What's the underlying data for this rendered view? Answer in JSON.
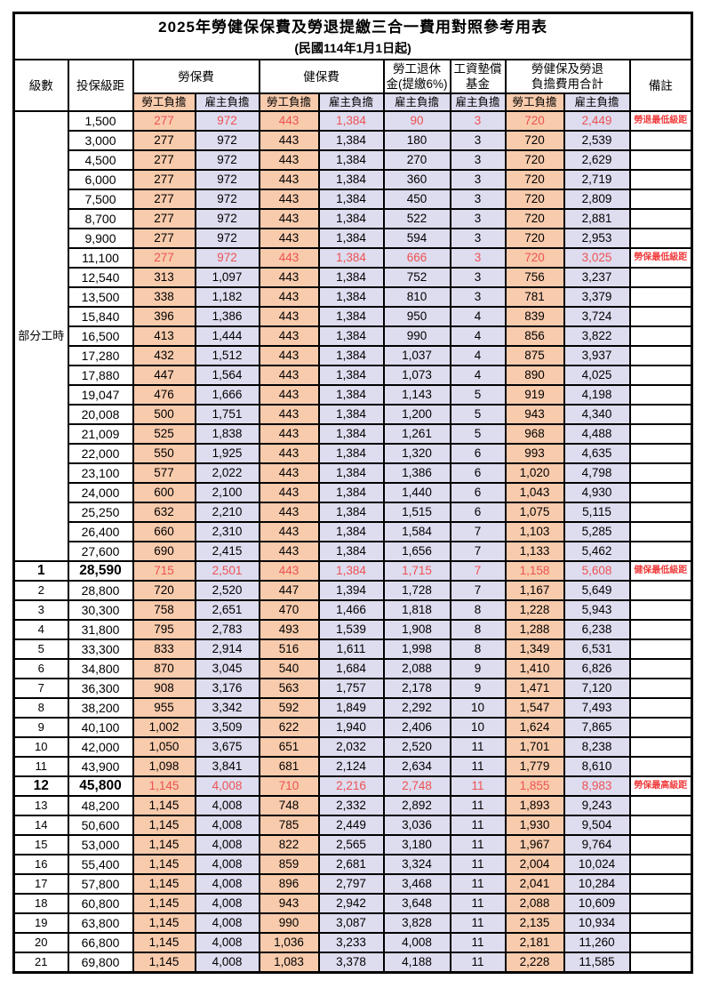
{
  "title": "2025年勞健保保費及勞退提繳三合一費用對照參考用表",
  "subtitle": "(民國114年1月1日起)",
  "header": {
    "level": "級數",
    "bracket": "投保級距",
    "labor_insurance": "勞保費",
    "health_insurance": "健保費",
    "pension_line1": "勞工退休",
    "pension_line2": "金(提繳6%)",
    "wage_fund_line1": "工資墊償",
    "wage_fund_line2": "基金",
    "total_line1": "勞健保及勞退",
    "total_line2": "負擔費用合計",
    "remark": "備註",
    "employee_share": "勞工負擔",
    "employer_share": "雇主負擔"
  },
  "colors": {
    "employee_bg": "#F8CBAD",
    "employer_bg": "#DEDCEF",
    "highlight_text": "#EC5252",
    "remark_text": "#F03C3C",
    "border": "#000000"
  },
  "group": {
    "label": "部分工時",
    "span": 23
  },
  "rows": [
    {
      "level": "",
      "bracket": "1,500",
      "values": [
        "277",
        "972",
        "443",
        "1,384",
        "90",
        "3",
        "720",
        "2,449"
      ],
      "remark": "勞退最低級距",
      "red": true,
      "bold": false
    },
    {
      "level": "",
      "bracket": "3,000",
      "values": [
        "277",
        "972",
        "443",
        "1,384",
        "180",
        "3",
        "720",
        "2,539"
      ],
      "remark": "",
      "red": false,
      "bold": false
    },
    {
      "level": "",
      "bracket": "4,500",
      "values": [
        "277",
        "972",
        "443",
        "1,384",
        "270",
        "3",
        "720",
        "2,629"
      ],
      "remark": "",
      "red": false,
      "bold": false
    },
    {
      "level": "",
      "bracket": "6,000",
      "values": [
        "277",
        "972",
        "443",
        "1,384",
        "360",
        "3",
        "720",
        "2,719"
      ],
      "remark": "",
      "red": false,
      "bold": false
    },
    {
      "level": "",
      "bracket": "7,500",
      "values": [
        "277",
        "972",
        "443",
        "1,384",
        "450",
        "3",
        "720",
        "2,809"
      ],
      "remark": "",
      "red": false,
      "bold": false
    },
    {
      "level": "",
      "bracket": "8,700",
      "values": [
        "277",
        "972",
        "443",
        "1,384",
        "522",
        "3",
        "720",
        "2,881"
      ],
      "remark": "",
      "red": false,
      "bold": false
    },
    {
      "level": "",
      "bracket": "9,900",
      "values": [
        "277",
        "972",
        "443",
        "1,384",
        "594",
        "3",
        "720",
        "2,953"
      ],
      "remark": "",
      "red": false,
      "bold": false
    },
    {
      "level": "",
      "bracket": "11,100",
      "values": [
        "277",
        "972",
        "443",
        "1,384",
        "666",
        "3",
        "720",
        "3,025"
      ],
      "remark": "勞保最低級距",
      "red": true,
      "bold": false
    },
    {
      "level": "",
      "bracket": "12,540",
      "values": [
        "313",
        "1,097",
        "443",
        "1,384",
        "752",
        "3",
        "756",
        "3,237"
      ],
      "remark": "",
      "red": false,
      "bold": false
    },
    {
      "level": "",
      "bracket": "13,500",
      "values": [
        "338",
        "1,182",
        "443",
        "1,384",
        "810",
        "3",
        "781",
        "3,379"
      ],
      "remark": "",
      "red": false,
      "bold": false
    },
    {
      "level": "",
      "bracket": "15,840",
      "values": [
        "396",
        "1,386",
        "443",
        "1,384",
        "950",
        "4",
        "839",
        "3,724"
      ],
      "remark": "",
      "red": false,
      "bold": false
    },
    {
      "level": "",
      "bracket": "16,500",
      "values": [
        "413",
        "1,444",
        "443",
        "1,384",
        "990",
        "4",
        "856",
        "3,822"
      ],
      "remark": "",
      "red": false,
      "bold": false
    },
    {
      "level": "",
      "bracket": "17,280",
      "values": [
        "432",
        "1,512",
        "443",
        "1,384",
        "1,037",
        "4",
        "875",
        "3,937"
      ],
      "remark": "",
      "red": false,
      "bold": false
    },
    {
      "level": "",
      "bracket": "17,880",
      "values": [
        "447",
        "1,564",
        "443",
        "1,384",
        "1,073",
        "4",
        "890",
        "4,025"
      ],
      "remark": "",
      "red": false,
      "bold": false
    },
    {
      "level": "",
      "bracket": "19,047",
      "values": [
        "476",
        "1,666",
        "443",
        "1,384",
        "1,143",
        "5",
        "919",
        "4,198"
      ],
      "remark": "",
      "red": false,
      "bold": false
    },
    {
      "level": "",
      "bracket": "20,008",
      "values": [
        "500",
        "1,751",
        "443",
        "1,384",
        "1,200",
        "5",
        "943",
        "4,340"
      ],
      "remark": "",
      "red": false,
      "bold": false
    },
    {
      "level": "",
      "bracket": "21,009",
      "values": [
        "525",
        "1,838",
        "443",
        "1,384",
        "1,261",
        "5",
        "968",
        "4,488"
      ],
      "remark": "",
      "red": false,
      "bold": false
    },
    {
      "level": "",
      "bracket": "22,000",
      "values": [
        "550",
        "1,925",
        "443",
        "1,384",
        "1,320",
        "6",
        "993",
        "4,635"
      ],
      "remark": "",
      "red": false,
      "bold": false
    },
    {
      "level": "",
      "bracket": "23,100",
      "values": [
        "577",
        "2,022",
        "443",
        "1,384",
        "1,386",
        "6",
        "1,020",
        "4,798"
      ],
      "remark": "",
      "red": false,
      "bold": false
    },
    {
      "level": "",
      "bracket": "24,000",
      "values": [
        "600",
        "2,100",
        "443",
        "1,384",
        "1,440",
        "6",
        "1,043",
        "4,930"
      ],
      "remark": "",
      "red": false,
      "bold": false
    },
    {
      "level": "",
      "bracket": "25,250",
      "values": [
        "632",
        "2,210",
        "443",
        "1,384",
        "1,515",
        "6",
        "1,075",
        "5,115"
      ],
      "remark": "",
      "red": false,
      "bold": false
    },
    {
      "level": "",
      "bracket": "26,400",
      "values": [
        "660",
        "2,310",
        "443",
        "1,384",
        "1,584",
        "7",
        "1,103",
        "5,285"
      ],
      "remark": "",
      "red": false,
      "bold": false
    },
    {
      "level": "",
      "bracket": "27,600",
      "values": [
        "690",
        "2,415",
        "443",
        "1,384",
        "1,656",
        "7",
        "1,133",
        "5,462"
      ],
      "remark": "",
      "red": false,
      "bold": false
    },
    {
      "level": "1",
      "bracket": "28,590",
      "values": [
        "715",
        "2,501",
        "443",
        "1,384",
        "1,715",
        "7",
        "1,158",
        "5,608"
      ],
      "remark": "健保最低級距",
      "red": true,
      "bold": true
    },
    {
      "level": "2",
      "bracket": "28,800",
      "values": [
        "720",
        "2,520",
        "447",
        "1,394",
        "1,728",
        "7",
        "1,167",
        "5,649"
      ],
      "remark": "",
      "red": false,
      "bold": false
    },
    {
      "level": "3",
      "bracket": "30,300",
      "values": [
        "758",
        "2,651",
        "470",
        "1,466",
        "1,818",
        "8",
        "1,228",
        "5,943"
      ],
      "remark": "",
      "red": false,
      "bold": false
    },
    {
      "level": "4",
      "bracket": "31,800",
      "values": [
        "795",
        "2,783",
        "493",
        "1,539",
        "1,908",
        "8",
        "1,288",
        "6,238"
      ],
      "remark": "",
      "red": false,
      "bold": false
    },
    {
      "level": "5",
      "bracket": "33,300",
      "values": [
        "833",
        "2,914",
        "516",
        "1,611",
        "1,998",
        "8",
        "1,349",
        "6,531"
      ],
      "remark": "",
      "red": false,
      "bold": false
    },
    {
      "level": "6",
      "bracket": "34,800",
      "values": [
        "870",
        "3,045",
        "540",
        "1,684",
        "2,088",
        "9",
        "1,410",
        "6,826"
      ],
      "remark": "",
      "red": false,
      "bold": false
    },
    {
      "level": "7",
      "bracket": "36,300",
      "values": [
        "908",
        "3,176",
        "563",
        "1,757",
        "2,178",
        "9",
        "1,471",
        "7,120"
      ],
      "remark": "",
      "red": false,
      "bold": false
    },
    {
      "level": "8",
      "bracket": "38,200",
      "values": [
        "955",
        "3,342",
        "592",
        "1,849",
        "2,292",
        "10",
        "1,547",
        "7,493"
      ],
      "remark": "",
      "red": false,
      "bold": false
    },
    {
      "level": "9",
      "bracket": "40,100",
      "values": [
        "1,002",
        "3,509",
        "622",
        "1,940",
        "2,406",
        "10",
        "1,624",
        "7,865"
      ],
      "remark": "",
      "red": false,
      "bold": false
    },
    {
      "level": "10",
      "bracket": "42,000",
      "values": [
        "1,050",
        "3,675",
        "651",
        "2,032",
        "2,520",
        "11",
        "1,701",
        "8,238"
      ],
      "remark": "",
      "red": false,
      "bold": false
    },
    {
      "level": "11",
      "bracket": "43,900",
      "values": [
        "1,098",
        "3,841",
        "681",
        "2,124",
        "2,634",
        "11",
        "1,779",
        "8,610"
      ],
      "remark": "",
      "red": false,
      "bold": false
    },
    {
      "level": "12",
      "bracket": "45,800",
      "values": [
        "1,145",
        "4,008",
        "710",
        "2,216",
        "2,748",
        "11",
        "1,855",
        "8,983"
      ],
      "remark": "勞保最高級距",
      "red": true,
      "bold": true
    },
    {
      "level": "13",
      "bracket": "48,200",
      "values": [
        "1,145",
        "4,008",
        "748",
        "2,332",
        "2,892",
        "11",
        "1,893",
        "9,243"
      ],
      "remark": "",
      "red": false,
      "bold": false
    },
    {
      "level": "14",
      "bracket": "50,600",
      "values": [
        "1,145",
        "4,008",
        "785",
        "2,449",
        "3,036",
        "11",
        "1,930",
        "9,504"
      ],
      "remark": "",
      "red": false,
      "bold": false
    },
    {
      "level": "15",
      "bracket": "53,000",
      "values": [
        "1,145",
        "4,008",
        "822",
        "2,565",
        "3,180",
        "11",
        "1,967",
        "9,764"
      ],
      "remark": "",
      "red": false,
      "bold": false
    },
    {
      "level": "16",
      "bracket": "55,400",
      "values": [
        "1,145",
        "4,008",
        "859",
        "2,681",
        "3,324",
        "11",
        "2,004",
        "10,024"
      ],
      "remark": "",
      "red": false,
      "bold": false
    },
    {
      "level": "17",
      "bracket": "57,800",
      "values": [
        "1,145",
        "4,008",
        "896",
        "2,797",
        "3,468",
        "11",
        "2,041",
        "10,284"
      ],
      "remark": "",
      "red": false,
      "bold": false
    },
    {
      "level": "18",
      "bracket": "60,800",
      "values": [
        "1,145",
        "4,008",
        "943",
        "2,942",
        "3,648",
        "11",
        "2,088",
        "10,609"
      ],
      "remark": "",
      "red": false,
      "bold": false
    },
    {
      "level": "19",
      "bracket": "63,800",
      "values": [
        "1,145",
        "4,008",
        "990",
        "3,087",
        "3,828",
        "11",
        "2,135",
        "10,934"
      ],
      "remark": "",
      "red": false,
      "bold": false
    },
    {
      "level": "20",
      "bracket": "66,800",
      "values": [
        "1,145",
        "4,008",
        "1,036",
        "3,233",
        "4,008",
        "11",
        "2,181",
        "11,260"
      ],
      "remark": "",
      "red": false,
      "bold": false
    },
    {
      "level": "21",
      "bracket": "69,800",
      "values": [
        "1,145",
        "4,008",
        "1,083",
        "3,378",
        "4,188",
        "11",
        "2,228",
        "11,585"
      ],
      "remark": "",
      "red": false,
      "bold": false
    }
  ]
}
